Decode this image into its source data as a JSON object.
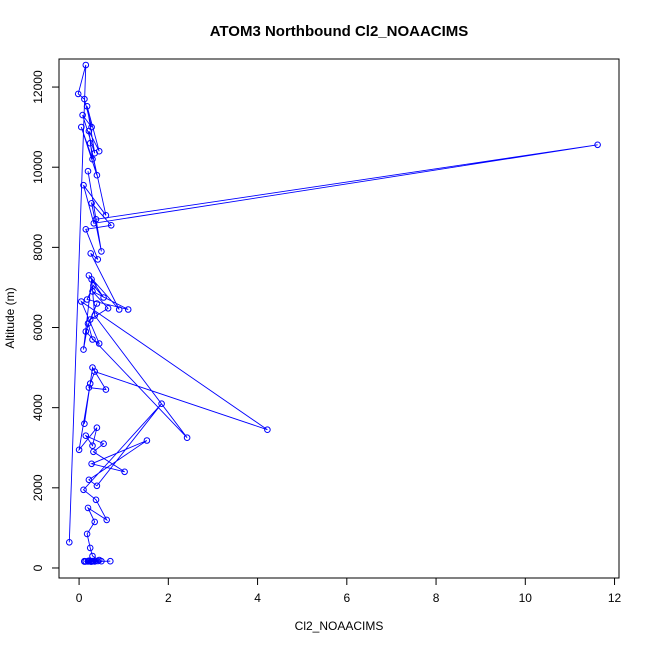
{
  "chart_data": {
    "type": "line",
    "title": "ATOM3 Northbound Cl2_NOAACIMS",
    "xlabel": "Cl2_NOAACIMS",
    "ylabel": "Altitude (m)",
    "xlim": [
      -0.45,
      12.1
    ],
    "ylim": [
      -250,
      12700
    ],
    "x_ticks": [
      0,
      2,
      4,
      6,
      8,
      10,
      12
    ],
    "y_ticks": [
      0,
      2000,
      4000,
      6000,
      8000,
      10000,
      12000
    ],
    "x_tick_labels": [
      "0",
      "2",
      "4",
      "6",
      "8",
      "10",
      "12"
    ],
    "y_tick_labels": [
      "0",
      "2000",
      "4000",
      "6000",
      "8000",
      "10000",
      "12000"
    ],
    "grid": false,
    "markers": "open-circle",
    "color": "#0000ff",
    "series": [
      {
        "x": [
          -0.22,
          0.15,
          -0.02,
          0.12,
          0.28,
          0.08,
          0.35,
          0.18,
          0.45,
          0.22,
          0.3,
          0.05,
          0.4,
          0.25,
          0.6,
          0.1,
          0.33,
          11.62,
          0.38,
          0.2,
          0.5,
          0.28,
          0.72,
          0.15,
          0.42,
          0.26,
          0.9,
          0.22,
          0.55,
          0.32,
          0.18,
          1.1,
          0.3,
          0.65,
          0.25,
          0.4,
          0.15,
          2.42,
          0.35,
          0.28,
          0.1,
          0.2,
          0.3,
          0.45,
          0.05,
          4.22,
          0.35,
          0.22,
          0.6,
          0.3,
          0.12,
          0.25,
          0.0,
          0.4,
          0.3,
          0.15,
          0.55,
          0.32,
          1.02,
          0.28,
          1.52,
          0.22,
          0.4,
          1.85,
          0.1,
          0.38,
          0.62,
          0.2,
          0.35,
          0.18,
          0.25,
          0.3,
          0.45,
          0.22,
          0.28,
          0.35,
          0.15,
          0.3,
          0.42,
          0.22,
          0.26,
          0.12,
          0.32,
          0.2,
          0.5,
          0.28,
          0.7,
          0.12,
          0.2
        ],
        "y": [
          640,
          12550,
          11830,
          11700,
          11000,
          11300,
          10350,
          11520,
          10400,
          10900,
          10200,
          11000,
          9800,
          10600,
          8800,
          9550,
          8600,
          10560,
          8700,
          9900,
          7900,
          9100,
          8550,
          8450,
          7700,
          7850,
          6450,
          7300,
          6750,
          7050,
          6700,
          6450,
          6900,
          6480,
          6200,
          6600,
          5900,
          3250,
          6300,
          7200,
          5450,
          6100,
          5700,
          5600,
          6650,
          3450,
          4900,
          4500,
          4450,
          5000,
          3600,
          4600,
          2950,
          3500,
          3050,
          3300,
          3100,
          2900,
          2400,
          2600,
          3180,
          2200,
          2050,
          4100,
          1950,
          1700,
          1200,
          1500,
          1150,
          850,
          500,
          300,
          200,
          180,
          170,
          165,
          165,
          170,
          175,
          180,
          160,
          170,
          175,
          165,
          170,
          160,
          170,
          160,
          170
        ]
      }
    ]
  }
}
